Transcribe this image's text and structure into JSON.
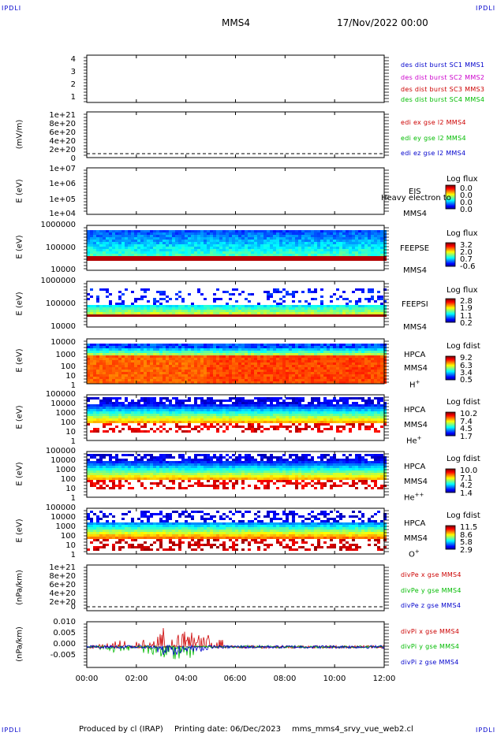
{
  "header": {
    "corner_tl": "IPDLI",
    "corner_tr": "IPDLI",
    "corner_bl": "IPDLI",
    "corner_br": "IPDLI",
    "spacecraft": "MMS4",
    "datetime": "17/Nov/2022 00:00"
  },
  "footer": {
    "produced": "Produced by cl (IRAP)",
    "printing": "Printing date: 06/Dec/2023",
    "script": "mms_mms4_srvy_vue_web2.cl"
  },
  "colors": {
    "blue": "#0000cc",
    "magenta": "#cc00cc",
    "red": "#cc0000",
    "green": "#00bb00",
    "black": "#000000"
  },
  "chart_data": [
    {
      "id": "p1",
      "type": "line",
      "yticks": [
        "4",
        "3",
        "2",
        "1"
      ],
      "ylim": [
        0.6,
        4.3
      ],
      "legend": [
        {
          "text": "des dist burst SC1 MMS1",
          "color": "#0000cc"
        },
        {
          "text": "des dist burst SC2 MMS2",
          "color": "#cc00cc"
        },
        {
          "text": "des dist burst SC3 MMS3",
          "color": "#cc0000"
        },
        {
          "text": "des dist burst SC4 MMS4",
          "color": "#00bb00"
        }
      ]
    },
    {
      "id": "p2",
      "type": "line",
      "ylabel": "(mV/m)",
      "yticks": [
        "1e+21",
        "8e+20",
        "6e+20",
        "4e+20",
        "2e+20",
        "0"
      ],
      "legend": [
        {
          "text": "edi ex gse l2 MMS4",
          "color": "#cc0000"
        },
        {
          "text": "edi ey gse l2 MMS4",
          "color": "#00bb00"
        },
        {
          "text": "edi ez gse l2 MMS4",
          "color": "#0000cc"
        }
      ]
    },
    {
      "id": "p3",
      "type": "heatmap",
      "ylabel": "E (eV)",
      "yticks": [
        "1e+07",
        "1e+06",
        "1e+05",
        "1e+04"
      ],
      "instrument": "EIS",
      "subtitle": "Heavy electron to",
      "sc": "MMS4",
      "colorbar": {
        "title": "Log flux",
        "values": [
          "0.0",
          "0.0",
          "0.0",
          "0.0"
        ]
      }
    },
    {
      "id": "p4",
      "type": "heatmap",
      "ylabel": "E (eV)",
      "yticks": [
        "1000000",
        "100000",
        "10000"
      ],
      "instrument": "FEEPSE",
      "sc": "MMS4",
      "colorbar": {
        "title": "Log flux",
        "values": [
          "3.2",
          "2.0",
          "0.7",
          "-0.6"
        ]
      }
    },
    {
      "id": "p5",
      "type": "heatmap",
      "ylabel": "E (eV)",
      "yticks": [
        "1000000",
        "100000",
        "10000"
      ],
      "instrument": "FEEPSI",
      "sc": "MMS4",
      "colorbar": {
        "title": "Log flux",
        "values": [
          "2.8",
          "1.9",
          "1.1",
          "0.2"
        ]
      }
    },
    {
      "id": "p6",
      "type": "heatmap",
      "ylabel": "E (eV)",
      "yticks": [
        "10000",
        "1000",
        "100",
        "10",
        "1"
      ],
      "instrument": "HPCA",
      "sc": "MMS4",
      "species": "H",
      "charge": "+",
      "colorbar": {
        "title": "Log fdist",
        "values": [
          "9.2",
          "6.3",
          "3.4",
          "0.5"
        ]
      }
    },
    {
      "id": "p7",
      "type": "heatmap",
      "ylabel": "E (eV)",
      "yticks": [
        "100000",
        "10000",
        "1000",
        "100",
        "10",
        "1"
      ],
      "instrument": "HPCA",
      "sc": "MMS4",
      "species": "He",
      "charge": "+",
      "colorbar": {
        "title": "Log fdist",
        "values": [
          "10.2",
          "7.4",
          "4.5",
          "1.7"
        ]
      }
    },
    {
      "id": "p8",
      "type": "heatmap",
      "ylabel": "E (eV)",
      "yticks": [
        "100000",
        "10000",
        "1000",
        "100",
        "10",
        "1"
      ],
      "instrument": "HPCA",
      "sc": "MMS4",
      "species": "He",
      "charge": "++",
      "colorbar": {
        "title": "Log fdist",
        "values": [
          "10.0",
          "7.1",
          "4.2",
          "1.4"
        ]
      }
    },
    {
      "id": "p9",
      "type": "heatmap",
      "ylabel": "E (eV)",
      "yticks": [
        "100000",
        "10000",
        "1000",
        "100",
        "10",
        "1"
      ],
      "instrument": "HPCA",
      "sc": "MMS4",
      "species": "O",
      "charge": "+",
      "colorbar": {
        "title": "Log fdist",
        "values": [
          "11.5",
          "8.6",
          "5.8",
          "2.9"
        ]
      }
    },
    {
      "id": "p10",
      "type": "line",
      "ylabel": "(nPa/km)",
      "yticks": [
        "1e+21",
        "8e+20",
        "6e+20",
        "4e+20",
        "2e+20",
        "0"
      ],
      "legend": [
        {
          "text": "divPe x gse MMS4",
          "color": "#cc0000"
        },
        {
          "text": "divPe y gse MMS4",
          "color": "#00bb00"
        },
        {
          "text": "divPe z gse MMS4",
          "color": "#0000cc"
        }
      ]
    },
    {
      "id": "p11",
      "type": "line",
      "ylabel": "(nPa/km)",
      "yticks": [
        "0.010",
        "0.005",
        "0.000",
        "-0.005"
      ],
      "ylim": [
        -0.009,
        0.011
      ],
      "legend": [
        {
          "text": "divPi x gse MMS4",
          "color": "#cc0000"
        },
        {
          "text": "divPi y gse MMS4",
          "color": "#00bb00"
        },
        {
          "text": "divPi z gse MMS4",
          "color": "#0000cc"
        }
      ]
    }
  ],
  "xaxis": {
    "ticks": [
      "00:00",
      "02:00",
      "04:00",
      "06:00",
      "08:00",
      "10:00",
      "12:00"
    ],
    "xlim_hours": [
      0,
      12
    ]
  }
}
